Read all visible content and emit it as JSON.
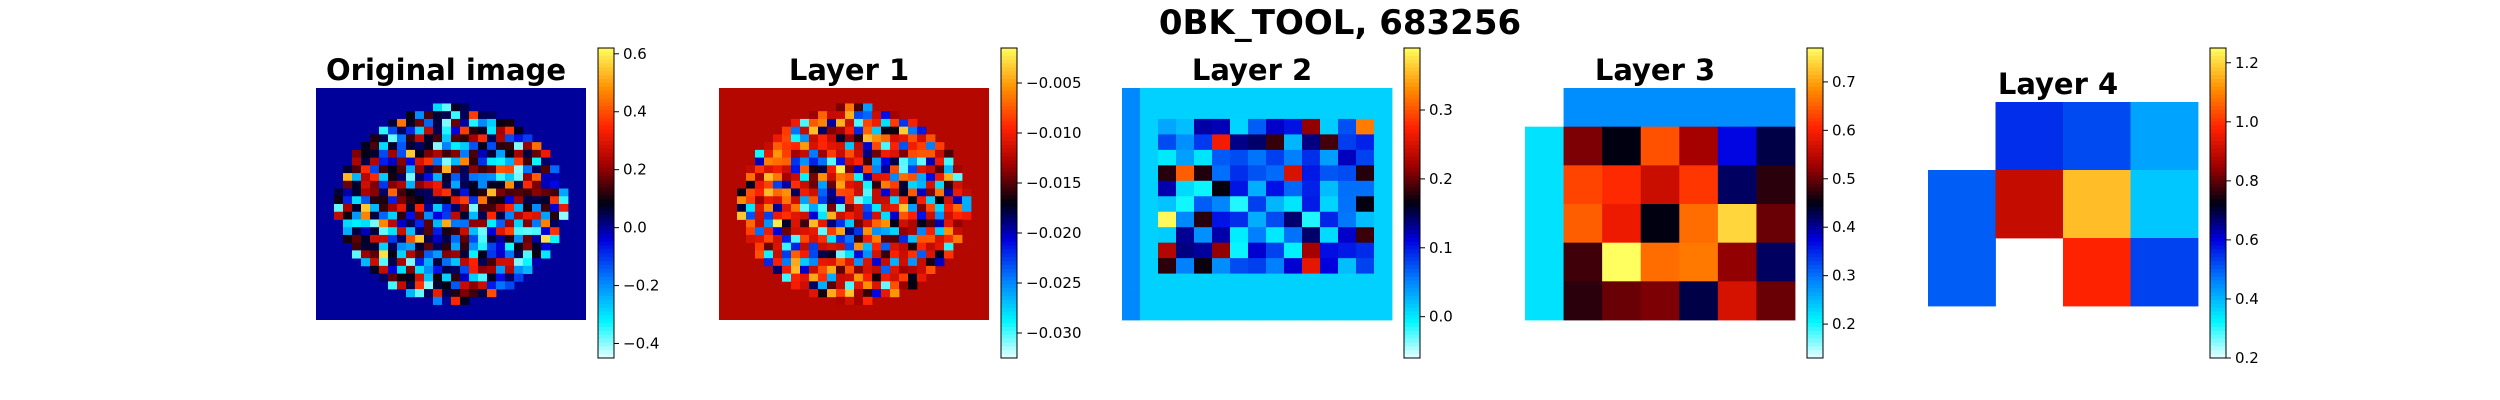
{
  "figure": {
    "title": "0BK_TOOL, 683256"
  },
  "colormap": {
    "name": "jet-hot diverging",
    "stops": [
      {
        "t": 0.0,
        "color": "#e6ffff"
      },
      {
        "t": 0.12,
        "color": "#00f5ff"
      },
      {
        "t": 0.25,
        "color": "#0080ff"
      },
      {
        "t": 0.38,
        "color": "#0000e0"
      },
      {
        "t": 0.5,
        "color": "#000010"
      },
      {
        "t": 0.62,
        "color": "#a00000"
      },
      {
        "t": 0.74,
        "color": "#ff2000"
      },
      {
        "t": 0.87,
        "color": "#ff9000"
      },
      {
        "t": 1.0,
        "color": "#ffff60"
      }
    ]
  },
  "chart_data": [
    {
      "type": "heatmap",
      "title": "Original image",
      "grid_size": 30,
      "shape": "circular",
      "background_value": 0.0,
      "color_range": [
        -0.45,
        0.62
      ],
      "colorbar_ticks": [
        0.6,
        0.4,
        0.2,
        0.0,
        -0.2,
        -0.4
      ],
      "colorbar_tick_labels": [
        "0.6",
        "0.4",
        "0.2",
        "0.0",
        "−0.2",
        "−0.4"
      ]
    },
    {
      "type": "heatmap",
      "title": "Layer 1",
      "grid_size": 30,
      "shape": "circular",
      "background_value": -0.0125,
      "color_range": [
        -0.0325,
        -0.0015
      ],
      "colorbar_ticks": [
        -0.005,
        -0.01,
        -0.015,
        -0.02,
        -0.025,
        -0.03
      ],
      "colorbar_tick_labels": [
        "−0.005",
        "−0.010",
        "−0.015",
        "−0.020",
        "−0.025",
        "−0.030"
      ]
    },
    {
      "type": "heatmap",
      "title": "Layer 2",
      "rows": 15,
      "cols": 15,
      "color_range": [
        -0.06,
        0.39
      ],
      "colorbar_ticks": [
        0.3,
        0.2,
        0.1,
        0.0
      ],
      "colorbar_tick_labels": [
        "0.3",
        "0.2",
        "0.1",
        "0.0"
      ]
    },
    {
      "type": "heatmap",
      "title": "Layer 3",
      "rows": 6,
      "cols": 7,
      "color_range": [
        0.13,
        0.77
      ],
      "colorbar_ticks": [
        0.7,
        0.6,
        0.5,
        0.4,
        0.3,
        0.2
      ],
      "colorbar_tick_labels": [
        "0.7",
        "0.6",
        "0.5",
        "0.4",
        "0.3",
        "0.2"
      ],
      "values": [
        [
          null,
          0.28,
          0.28,
          0.28,
          0.28,
          0.28,
          0.28
        ],
        [
          0.22,
          0.51,
          0.45,
          0.64,
          0.53,
          0.37,
          0.43
        ],
        [
          0.22,
          0.63,
          0.61,
          0.56,
          0.62,
          0.42,
          0.47
        ],
        [
          0.22,
          0.65,
          0.59,
          0.45,
          0.66,
          0.74,
          0.5
        ],
        [
          0.22,
          0.48,
          0.77,
          0.66,
          0.67,
          0.52,
          0.42
        ],
        [
          0.22,
          0.47,
          0.5,
          0.51,
          0.43,
          0.57,
          0.5
        ]
      ]
    },
    {
      "type": "heatmap",
      "title": "Layer 4",
      "rows": 3,
      "cols": 4,
      "color_range": [
        0.2,
        1.25
      ],
      "colorbar_ticks": [
        1.2,
        1.0,
        0.8,
        0.6,
        0.4,
        0.2
      ],
      "colorbar_tick_labels": [
        "1.2",
        "1.0",
        "0.8",
        "0.6",
        "0.4",
        "0.2"
      ],
      "values": [
        [
          null,
          0.55,
          0.52,
          0.42
        ],
        [
          0.5,
          0.9,
          1.17,
          0.38
        ],
        [
          0.5,
          null,
          0.98,
          0.53
        ]
      ]
    }
  ]
}
